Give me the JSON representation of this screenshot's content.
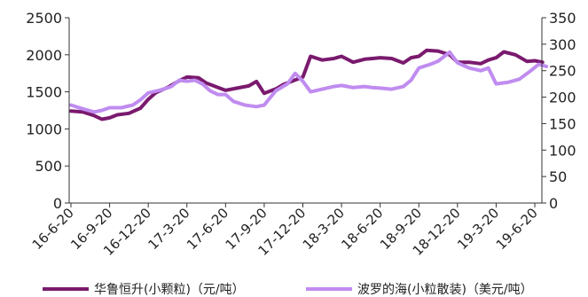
{
  "chart_data": {
    "type": "line",
    "title": "",
    "xlabel": "",
    "ylabel_left": "",
    "ylabel_right": "",
    "left_axis": {
      "min": 0,
      "max": 2500,
      "ticks": [
        0,
        500,
        1000,
        1500,
        2000,
        2500
      ]
    },
    "right_axis": {
      "min": 0,
      "max": 350,
      "ticks": [
        0,
        50,
        100,
        150,
        200,
        250,
        300,
        350
      ]
    },
    "x_ticks": [
      "16-6-20",
      "16-9-20",
      "16-12-20",
      "17-3-20",
      "17-6-20",
      "17-9-20",
      "17-12-20",
      "18-3-20",
      "18-6-20",
      "18-9-20",
      "18-12-20",
      "19-3-20",
      "19-6-20"
    ],
    "grid": false,
    "legend_position": "bottom",
    "series": [
      {
        "name": "华鲁恒升(小颗粒)（元/吨）",
        "axis": "left",
        "color": "#7a1a6e",
        "points": [
          [
            0.0,
            1240
          ],
          [
            0.3,
            1230
          ],
          [
            0.6,
            1180
          ],
          [
            0.8,
            1130
          ],
          [
            1.0,
            1150
          ],
          [
            1.2,
            1190
          ],
          [
            1.5,
            1210
          ],
          [
            1.8,
            1280
          ],
          [
            2.0,
            1400
          ],
          [
            2.2,
            1490
          ],
          [
            2.5,
            1560
          ],
          [
            2.8,
            1650
          ],
          [
            3.0,
            1700
          ],
          [
            3.3,
            1690
          ],
          [
            3.5,
            1620
          ],
          [
            3.8,
            1560
          ],
          [
            4.0,
            1520
          ],
          [
            4.3,
            1550
          ],
          [
            4.6,
            1580
          ],
          [
            4.8,
            1640
          ],
          [
            5.0,
            1480
          ],
          [
            5.3,
            1540
          ],
          [
            5.5,
            1600
          ],
          [
            5.8,
            1660
          ],
          [
            6.0,
            1700
          ],
          [
            6.2,
            1980
          ],
          [
            6.5,
            1930
          ],
          [
            6.8,
            1950
          ],
          [
            7.0,
            1980
          ],
          [
            7.3,
            1900
          ],
          [
            7.6,
            1940
          ],
          [
            7.8,
            1950
          ],
          [
            8.0,
            1960
          ],
          [
            8.3,
            1950
          ],
          [
            8.6,
            1890
          ],
          [
            8.8,
            1960
          ],
          [
            9.0,
            1980
          ],
          [
            9.2,
            2060
          ],
          [
            9.5,
            2050
          ],
          [
            9.8,
            2000
          ],
          [
            10.0,
            1900
          ],
          [
            10.3,
            1900
          ],
          [
            10.6,
            1880
          ],
          [
            10.8,
            1930
          ],
          [
            11.0,
            1960
          ],
          [
            11.2,
            2040
          ],
          [
            11.5,
            2000
          ],
          [
            11.8,
            1910
          ],
          [
            12.0,
            1920
          ],
          [
            12.2,
            1900
          ]
        ]
      },
      {
        "name": "波罗的海(小粒散装)（美元/吨）",
        "axis": "right",
        "color": "#c08cf0",
        "points": [
          [
            0.0,
            185
          ],
          [
            0.3,
            178
          ],
          [
            0.6,
            172
          ],
          [
            0.8,
            175
          ],
          [
            1.0,
            180
          ],
          [
            1.3,
            180
          ],
          [
            1.6,
            185
          ],
          [
            1.8,
            195
          ],
          [
            2.0,
            208
          ],
          [
            2.3,
            213
          ],
          [
            2.6,
            220
          ],
          [
            2.8,
            232
          ],
          [
            3.0,
            230
          ],
          [
            3.2,
            232
          ],
          [
            3.4,
            225
          ],
          [
            3.6,
            212
          ],
          [
            3.8,
            205
          ],
          [
            4.0,
            205
          ],
          [
            4.2,
            192
          ],
          [
            4.5,
            185
          ],
          [
            4.8,
            182
          ],
          [
            5.0,
            185
          ],
          [
            5.3,
            212
          ],
          [
            5.6,
            225
          ],
          [
            5.8,
            245
          ],
          [
            6.0,
            230
          ],
          [
            6.2,
            210
          ],
          [
            6.5,
            215
          ],
          [
            6.8,
            220
          ],
          [
            7.0,
            222
          ],
          [
            7.3,
            218
          ],
          [
            7.6,
            220
          ],
          [
            7.8,
            218
          ],
          [
            8.0,
            217
          ],
          [
            8.3,
            215
          ],
          [
            8.6,
            220
          ],
          [
            8.8,
            232
          ],
          [
            9.0,
            255
          ],
          [
            9.3,
            262
          ],
          [
            9.5,
            268
          ],
          [
            9.8,
            285
          ],
          [
            10.0,
            265
          ],
          [
            10.3,
            255
          ],
          [
            10.6,
            250
          ],
          [
            10.8,
            255
          ],
          [
            11.0,
            225
          ],
          [
            11.3,
            228
          ],
          [
            11.6,
            234
          ],
          [
            11.9,
            250
          ],
          [
            12.1,
            262
          ],
          [
            12.3,
            258
          ]
        ]
      }
    ]
  }
}
